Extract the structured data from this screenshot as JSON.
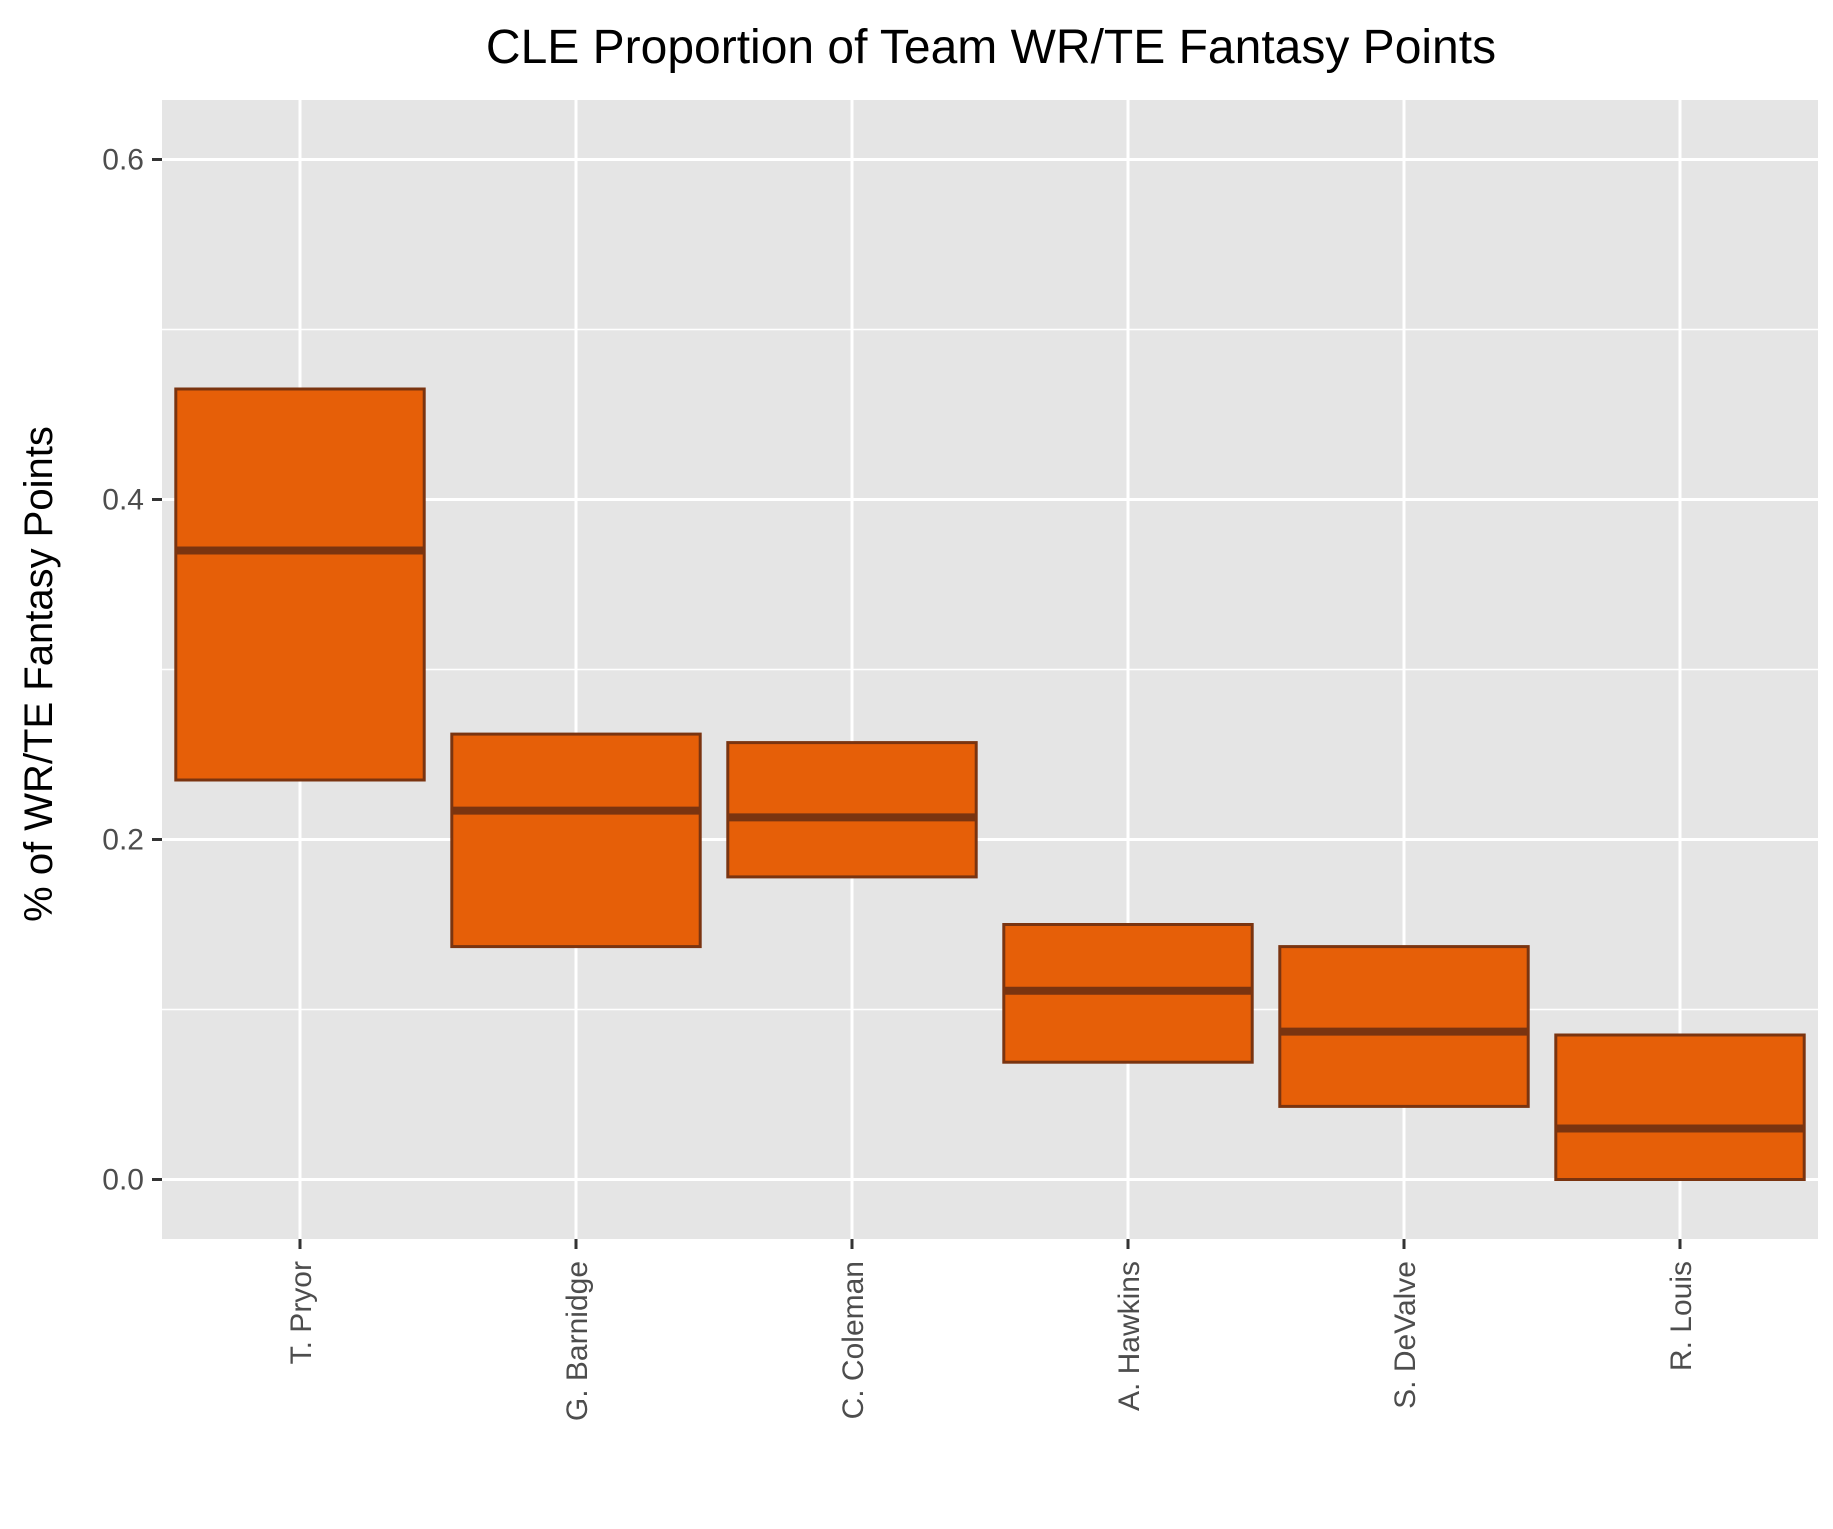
{
  "chart_data": {
    "type": "boxplot",
    "title": "CLE Proportion of Team WR/TE Fantasy Points",
    "xlabel": "",
    "ylabel": "% of WR/TE Fantasy Points",
    "ylim": [
      -0.035,
      0.635
    ],
    "y_ticks": [
      "0.0",
      "0.2",
      "0.4",
      "0.6"
    ],
    "y_tick_values": [
      0.0,
      0.2,
      0.4,
      0.6
    ],
    "grid": true,
    "categories": [
      "T. Pryor",
      "G. Barnidge",
      "C. Coleman",
      "A. Hawkins",
      "S. DeValve",
      "R. Louis"
    ],
    "boxes": [
      {
        "name": "T. Pryor",
        "q1": 0.235,
        "median": 0.37,
        "q3": 0.465
      },
      {
        "name": "G. Barnidge",
        "q1": 0.137,
        "median": 0.217,
        "q3": 0.262
      },
      {
        "name": "C. Coleman",
        "q1": 0.178,
        "median": 0.213,
        "q3": 0.257
      },
      {
        "name": "A. Hawkins",
        "q1": 0.069,
        "median": 0.111,
        "q3": 0.15
      },
      {
        "name": "S. DeValve",
        "q1": 0.043,
        "median": 0.087,
        "q3": 0.137
      },
      {
        "name": "R. Louis",
        "q1": 0.0,
        "median": 0.03,
        "q3": 0.085
      }
    ],
    "colors": {
      "panel_background": "#e5e5e5",
      "grid_line": "#ffffff",
      "box_fill": "#e65f08",
      "box_outline": "#7a3410",
      "tick_mark": "#333333",
      "tick_text": "#4d4d4d"
    }
  }
}
